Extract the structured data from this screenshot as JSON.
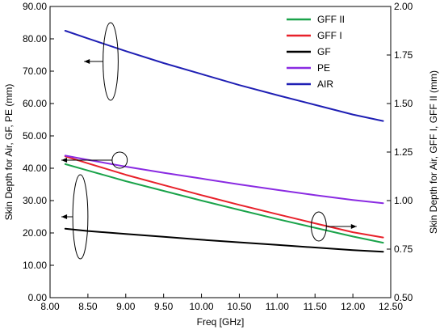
{
  "chart_data": {
    "type": "line",
    "title": "",
    "xlabel": "Freq [GHz]",
    "ylabel_left": "Skin Depth for Air, GF, PE (mm)",
    "ylabel_right": "Skin Depth for Air, GFF I, GFF II (mm)",
    "xlim": [
      8.0,
      12.5
    ],
    "ylim_left": [
      0.0,
      90.0
    ],
    "ylim_right": [
      0.5,
      2.0
    ],
    "x_ticks": [
      "8.00",
      "8.50",
      "9.00",
      "9.50",
      "10.00",
      "10.50",
      "11.00",
      "11.50",
      "12.00",
      "12.50"
    ],
    "y_ticks_left": [
      "0.00",
      "10.00",
      "20.00",
      "30.00",
      "40.00",
      "50.00",
      "60.00",
      "70.00",
      "80.00",
      "90.00"
    ],
    "y_ticks_right": [
      "0.50",
      "0.75",
      "1.00",
      "1.25",
      "1.50",
      "1.75",
      "2.00"
    ],
    "grid": false,
    "legend_position": "top-right",
    "series": [
      {
        "name": "GFF II",
        "color": "#1aa34a",
        "axis": "right",
        "x": [
          8.2,
          8.5,
          9.0,
          9.5,
          10.0,
          10.5,
          11.0,
          11.5,
          12.0,
          12.4
        ],
        "y": [
          1.188,
          1.155,
          1.1,
          1.05,
          1.0,
          0.952,
          0.905,
          0.86,
          0.815,
          0.783
        ]
      },
      {
        "name": "GFF I",
        "color": "#e8212a",
        "axis": "right",
        "x": [
          8.2,
          8.5,
          9.0,
          9.5,
          10.0,
          10.5,
          11.0,
          11.5,
          12.0,
          12.4
        ],
        "y": [
          1.228,
          1.192,
          1.133,
          1.08,
          1.028,
          0.978,
          0.93,
          0.883,
          0.837,
          0.81
        ]
      },
      {
        "name": "GF",
        "color": "#000000",
        "axis": "left",
        "x": [
          8.2,
          8.5,
          9.0,
          9.5,
          10.0,
          10.5,
          11.0,
          11.5,
          12.0,
          12.4
        ],
        "y": [
          21.3,
          20.6,
          19.7,
          18.8,
          17.9,
          17.1,
          16.3,
          15.5,
          14.7,
          14.2
        ]
      },
      {
        "name": "PE",
        "color": "#8a2be2",
        "axis": "left",
        "x": [
          8.2,
          8.5,
          9.0,
          9.5,
          10.0,
          10.5,
          11.0,
          11.5,
          12.0,
          12.4
        ],
        "y": [
          43.9,
          42.6,
          40.5,
          38.6,
          36.8,
          35.0,
          33.3,
          31.7,
          30.2,
          29.2
        ]
      },
      {
        "name": "AIR",
        "color": "#1f1fb4",
        "axis": "left",
        "x": [
          8.2,
          8.5,
          9.0,
          9.5,
          10.0,
          10.5,
          11.0,
          11.5,
          12.0,
          12.4
        ],
        "y": [
          82.5,
          80.1,
          76.2,
          72.5,
          69.1,
          65.7,
          62.6,
          59.6,
          56.6,
          54.6
        ]
      }
    ],
    "annotations": [
      {
        "type": "ellipse-arrow",
        "target": "AIR",
        "axis": "left",
        "cx": 8.8,
        "cy": 73.0,
        "rx": 0.1,
        "ry": 12.0,
        "arrow_to": 8.45,
        "direction": "left"
      },
      {
        "type": "ellipse-arrow",
        "target": "PE",
        "axis": "left",
        "cx": 8.92,
        "cy": 42.5,
        "rx": 0.1,
        "ry": 2.5,
        "arrow_to": 8.15,
        "direction": "left"
      },
      {
        "type": "ellipse-arrow",
        "target": "GF",
        "axis": "left",
        "cx": 8.4,
        "cy": 25.0,
        "rx": 0.1,
        "ry": 13.0,
        "arrow_to": 8.15,
        "direction": "left"
      },
      {
        "type": "ellipse-arrow",
        "target": "GFF I / GFF II",
        "axis": "left",
        "cx": 11.55,
        "cy": 22.0,
        "rx": 0.1,
        "ry": 4.5,
        "arrow_to": 12.05,
        "direction": "right"
      }
    ]
  }
}
